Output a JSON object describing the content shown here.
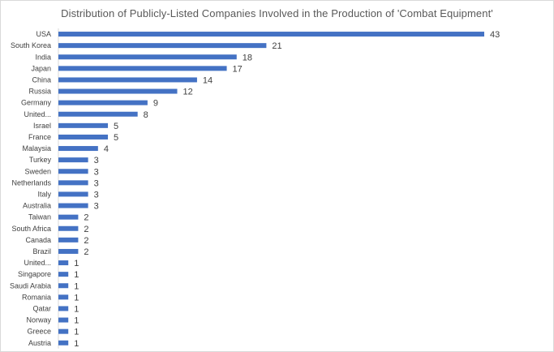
{
  "chart_data": {
    "type": "bar",
    "orientation": "horizontal",
    "title": "Distribution of Publicly-Listed Companies Involved in the Production of 'Combat Equipment'",
    "categories": [
      "USA",
      "South Korea",
      "India",
      "Japan",
      "China",
      "Russia",
      "Germany",
      "United...",
      "Israel",
      "France",
      "Malaysia",
      "Turkey",
      "Sweden",
      "Netherlands",
      "Italy",
      "Australia",
      "Taiwan",
      "South Africa",
      "Canada",
      "Brazil",
      "United...",
      "Singapore",
      "Saudi Arabia",
      "Romania",
      "Qatar",
      "Norway",
      "Greece",
      "Austria"
    ],
    "values": [
      43,
      21,
      18,
      17,
      14,
      12,
      9,
      8,
      5,
      5,
      4,
      3,
      3,
      3,
      3,
      3,
      2,
      2,
      2,
      2,
      1,
      1,
      1,
      1,
      1,
      1,
      1,
      1
    ],
    "xlim": [
      0,
      43
    ],
    "grid": false,
    "legend": "none",
    "data_labels": true,
    "colors": {
      "bar": "#4472c4",
      "text": "#404040",
      "title": "#595959",
      "axis": "#d9d9d9"
    }
  }
}
